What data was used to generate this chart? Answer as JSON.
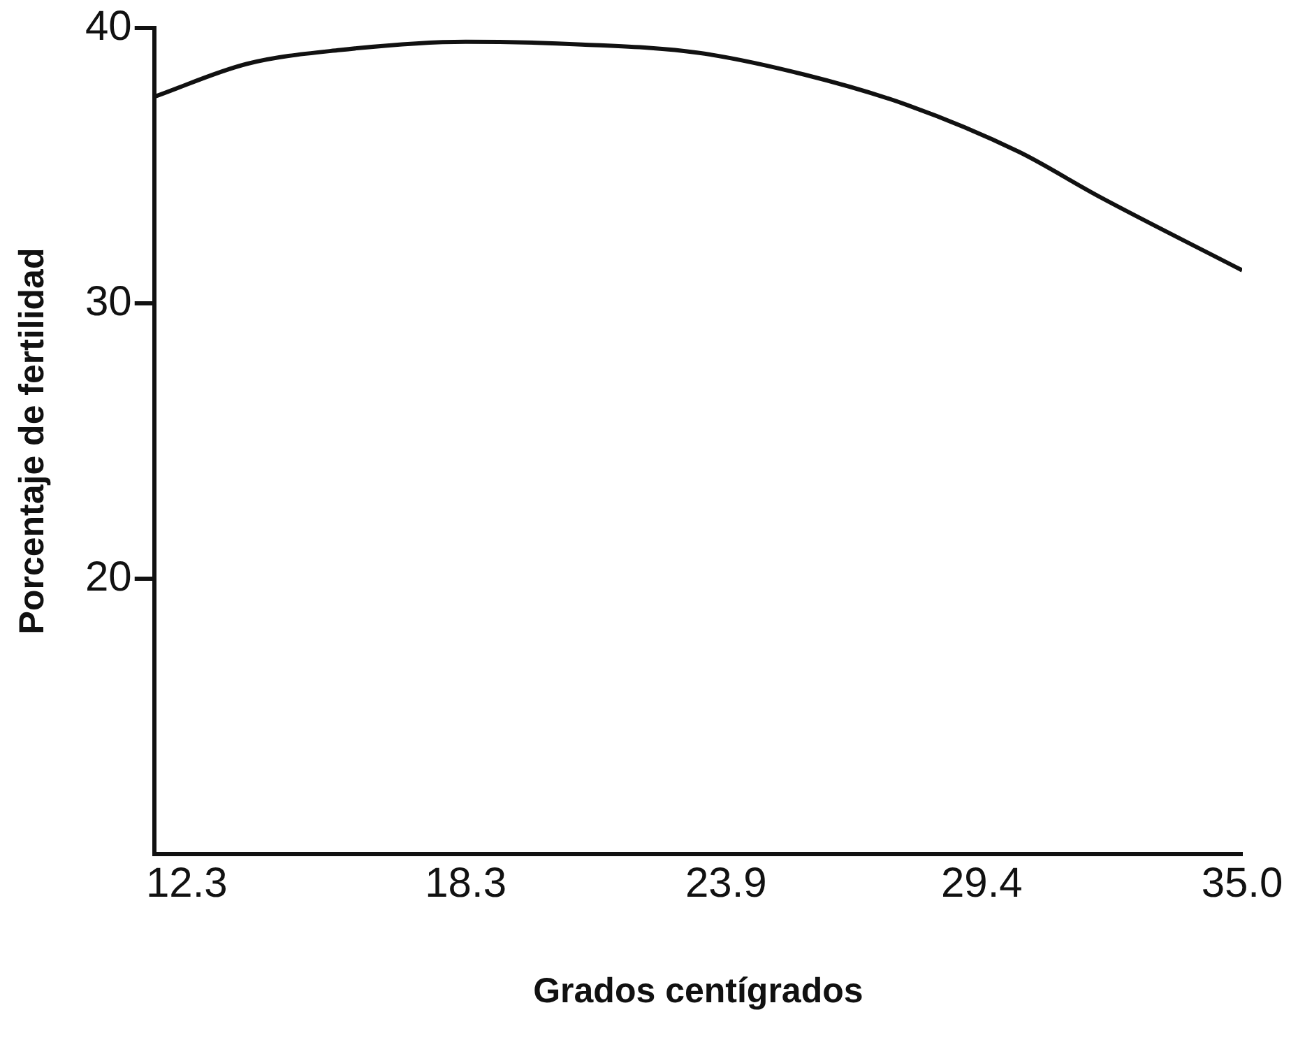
{
  "chart_data": {
    "type": "line",
    "xlabel": "Grados centígrados",
    "ylabel": "Porcentaje de fertilidad",
    "x": [
      11.6,
      13.6,
      15.6,
      18.3,
      20.8,
      23.3,
      25.6,
      27.8,
      30.2,
      31.9,
      35.0
    ],
    "series": [
      {
        "color": "#111111",
        "values": [
          37.5,
          38.7,
          39.2,
          39.5,
          39.4,
          39.1,
          38.3,
          37.2,
          35.5,
          33.9,
          31.2
        ]
      }
    ],
    "xlim": [
      11.6,
      35.0
    ],
    "xticks": [
      12.3,
      18.3,
      23.9,
      29.4,
      {
        "value": 35.0,
        "label": "35.0"
      }
    ],
    "ylim": [
      10,
      40
    ],
    "yticks": [
      20,
      30,
      40
    ],
    "grid": false,
    "legend": false,
    "marker": "none",
    "line_style": "solid"
  }
}
